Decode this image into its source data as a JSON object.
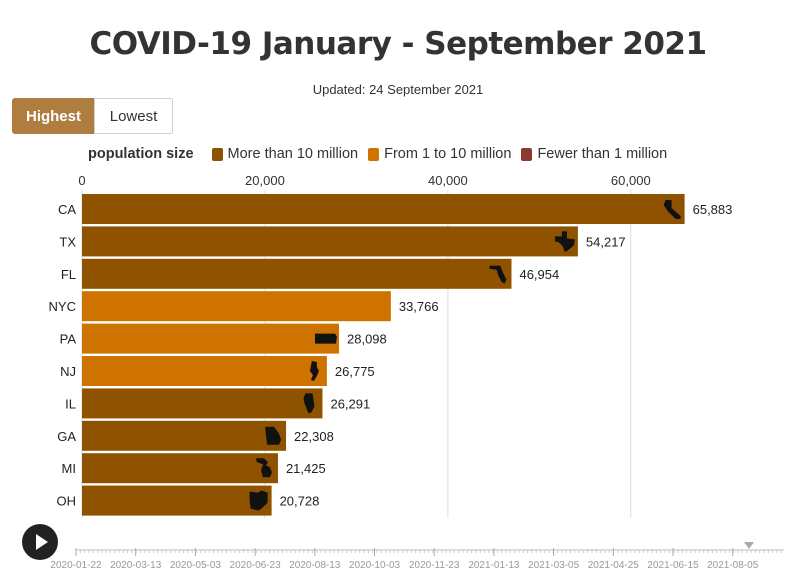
{
  "header": {
    "title": "COVID-19 January - September 2021",
    "subtitle": "Updated: 24 September 2021"
  },
  "controls": {
    "highest_label": "Highest",
    "lowest_label": "Lowest",
    "active": "Highest"
  },
  "legend": {
    "title": "population size",
    "items": [
      {
        "label": "More than 10 million",
        "color": "#8f5300"
      },
      {
        "label": "From 1 to 10 million",
        "color": "#cf7300"
      },
      {
        "label": "Fewer than 1 million",
        "color": "#8a3a33"
      }
    ]
  },
  "chart_data": {
    "type": "bar",
    "orientation": "horizontal",
    "categories": [
      "CA",
      "TX",
      "FL",
      "NYC",
      "PA",
      "NJ",
      "IL",
      "GA",
      "MI",
      "OH"
    ],
    "values": [
      65883,
      54217,
      46954,
      33766,
      28098,
      26775,
      26291,
      22308,
      21425,
      20728
    ],
    "value_labels": [
      "65,883",
      "54,217",
      "46,954",
      "33,766",
      "28,098",
      "26,775",
      "26,291",
      "22,308",
      "21,425",
      "20,728"
    ],
    "groups": [
      "More than 10 million",
      "More than 10 million",
      "More than 10 million",
      "From 1 to 10 million",
      "From 1 to 10 million",
      "From 1 to 10 million",
      "More than 10 million",
      "More than 10 million",
      "More than 10 million",
      "More than 10 million"
    ],
    "xlim": [
      0,
      70000
    ],
    "ticks": [
      0,
      20000,
      40000,
      60000
    ],
    "tick_labels": [
      "0",
      "20,000",
      "40,000",
      "60,000"
    ],
    "axis_position": "top",
    "grid": true,
    "state_icons": [
      true,
      true,
      true,
      false,
      true,
      true,
      true,
      true,
      true,
      true
    ]
  },
  "timeline": {
    "labels": [
      "2020-01-22",
      "2020-03-13",
      "2020-05-03",
      "2020-06-23",
      "2020-08-13",
      "2020-10-03",
      "2020-11-23",
      "2021-01-13",
      "2021-03-05",
      "2021-04-25",
      "2021-06-15",
      "2021-08-05"
    ],
    "current": "2021-09-24"
  }
}
